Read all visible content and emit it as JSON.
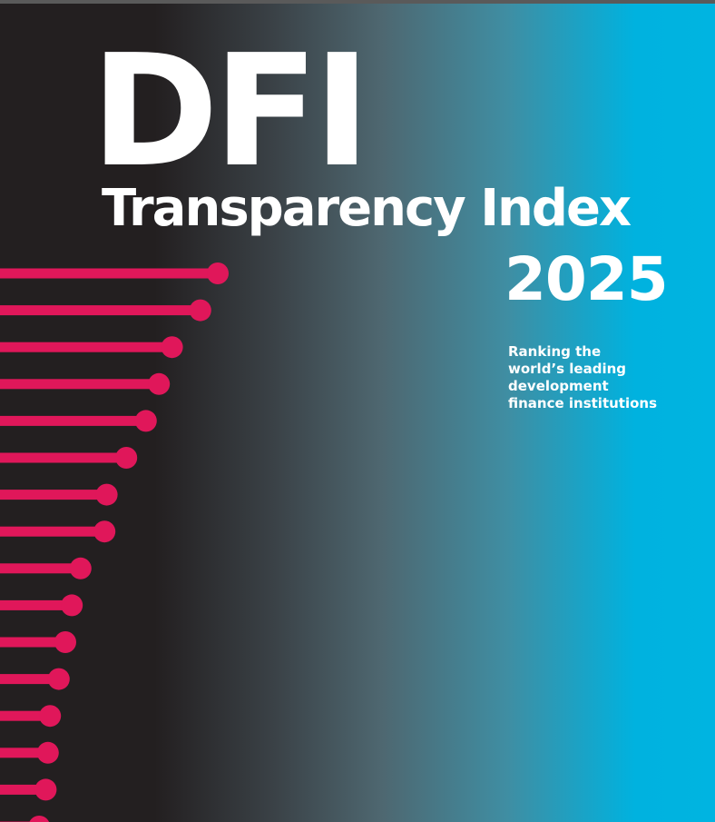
{
  "cover": {
    "title": "DFI",
    "subtitle": "Transparency Index",
    "year": "2025",
    "tagline_lines": [
      "Ranking the",
      "world’s leading",
      "development",
      "finance institutions"
    ]
  },
  "colors": {
    "background_dark": "#231f20",
    "background_light": "#00b4e1",
    "text": "#ffffff",
    "lollipop": "#e0175a"
  },
  "chart_data": {
    "type": "bar",
    "orientation": "horizontal",
    "style": "lollipop",
    "relative_lengths": [
      1.0,
      0.92,
      0.79,
      0.73,
      0.67,
      0.58,
      0.49,
      0.48,
      0.37,
      0.33,
      0.3,
      0.27,
      0.23,
      0.22,
      0.21,
      0.18
    ],
    "title": "",
    "xlabel": "",
    "ylabel": "",
    "grid": false,
    "legend": "none"
  }
}
